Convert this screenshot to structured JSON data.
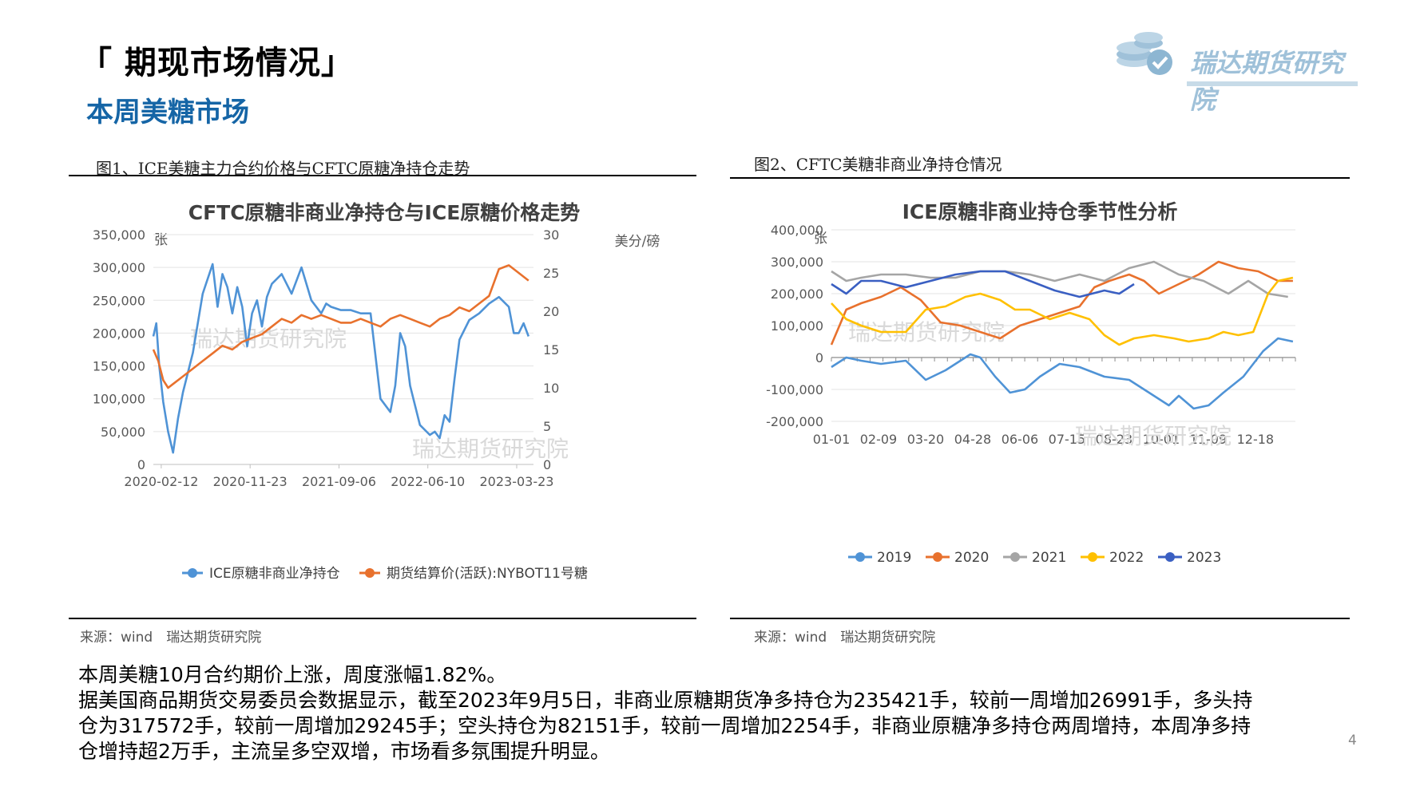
{
  "header": {
    "title": "「 期现市场情况」",
    "subtitle": "本周美糖市场",
    "logo_text": "瑞达期货研究院"
  },
  "figures": [
    {
      "caption": "图1、ICE美糖主力合约价格与CFTC原糖净持仓走势",
      "source": "来源：wind　瑞达期货研究院",
      "watermarks": [
        "瑞达期货研究院",
        "瑞达期货研究院"
      ]
    },
    {
      "caption": "图2、CFTC美糖非商业净持仓情况",
      "source": "来源：wind　瑞达期货研究院",
      "watermarks": [
        "瑞达期货研究院",
        "瑞达期货研究院"
      ]
    }
  ],
  "chart_data": [
    {
      "type": "line",
      "title": "CFTC原糖非商业净持仓与ICE原糖价格走势",
      "ylabel_left": "张",
      "ylabel_right": "美分/磅",
      "ylim_left": [
        0,
        350000
      ],
      "ylim_right": [
        0,
        30
      ],
      "yticks_left": [
        "350,000",
        "300,000",
        "250,000",
        "200,000",
        "150,000",
        "100,000",
        "50,000",
        "0"
      ],
      "yticks_right": [
        "30",
        "25",
        "20",
        "15",
        "10",
        "5",
        "0"
      ],
      "xticks": [
        "2020-02-12",
        "2020-11-23",
        "2021-09-06",
        "2022-06-10",
        "2023-03-23"
      ],
      "x_range": [
        0,
        3.85
      ],
      "legend": "bottom",
      "series": [
        {
          "name": "ICE原糖非商业净持仓",
          "axis": "left",
          "color": "#4f93d6",
          "x": [
            0.0,
            0.03,
            0.06,
            0.1,
            0.15,
            0.2,
            0.25,
            0.3,
            0.35,
            0.4,
            0.5,
            0.6,
            0.65,
            0.7,
            0.75,
            0.8,
            0.85,
            0.9,
            0.95,
            1.0,
            1.05,
            1.1,
            1.15,
            1.2,
            1.3,
            1.4,
            1.5,
            1.6,
            1.7,
            1.75,
            1.8,
            1.9,
            2.0,
            2.1,
            2.2,
            2.3,
            2.4,
            2.45,
            2.5,
            2.55,
            2.6,
            2.7,
            2.8,
            2.85,
            2.9,
            2.95,
            3.0,
            3.05,
            3.1,
            3.2,
            3.3,
            3.4,
            3.5,
            3.6,
            3.65,
            3.7,
            3.75,
            3.8
          ],
          "y": [
            195000,
            215000,
            150000,
            95000,
            50000,
            18000,
            70000,
            110000,
            140000,
            170000,
            260000,
            305000,
            240000,
            290000,
            270000,
            230000,
            270000,
            240000,
            180000,
            230000,
            250000,
            210000,
            255000,
            275000,
            290000,
            260000,
            300000,
            250000,
            230000,
            245000,
            240000,
            235000,
            235000,
            230000,
            230000,
            100000,
            80000,
            120000,
            200000,
            180000,
            120000,
            60000,
            45000,
            50000,
            40000,
            75000,
            65000,
            130000,
            190000,
            220000,
            230000,
            245000,
            255000,
            240000,
            200000,
            200000,
            215000,
            195000
          ]
        },
        {
          "name": "期货结算价(活跃):NYBOT11号糖",
          "axis": "right",
          "color": "#e8712d",
          "x": [
            0.0,
            0.05,
            0.1,
            0.15,
            0.2,
            0.3,
            0.4,
            0.5,
            0.6,
            0.7,
            0.8,
            0.9,
            1.0,
            1.1,
            1.2,
            1.3,
            1.4,
            1.5,
            1.6,
            1.7,
            1.8,
            1.9,
            2.0,
            2.1,
            2.2,
            2.3,
            2.4,
            2.5,
            2.6,
            2.7,
            2.8,
            2.9,
            3.0,
            3.1,
            3.2,
            3.3,
            3.4,
            3.5,
            3.6,
            3.7,
            3.8
          ],
          "y": [
            15.0,
            13.5,
            11.0,
            10.0,
            10.5,
            11.5,
            12.5,
            13.5,
            14.5,
            15.5,
            15.0,
            16.0,
            16.5,
            17.0,
            18.0,
            19.0,
            18.5,
            19.5,
            19.0,
            19.5,
            19.0,
            18.5,
            18.5,
            19.0,
            18.5,
            18.0,
            19.0,
            19.5,
            19.0,
            18.5,
            18.0,
            19.0,
            19.5,
            20.5,
            20.0,
            21.0,
            22.0,
            25.5,
            26.0,
            25.0,
            24.0
          ]
        }
      ]
    },
    {
      "type": "line",
      "title": "ICE原糖非商业持仓季节性分析",
      "ylabel": "张",
      "ylim": [
        -200000,
        400000
      ],
      "yticks": [
        "400,000",
        "300,000",
        "200,000",
        "100,000",
        "0",
        "-100,000",
        "-200,000"
      ],
      "xticks": [
        "01-01",
        "02-09",
        "03-20",
        "04-28",
        "06-06",
        "07-15",
        "08-23",
        "10-01",
        "11-09",
        "12-18"
      ],
      "x_range": [
        0,
        9.35
      ],
      "legend": "bottom",
      "series": [
        {
          "name": "2019",
          "color": "#4f93d6",
          "x": [
            0,
            0.3,
            0.6,
            1.0,
            1.5,
            1.9,
            2.3,
            2.8,
            3.0,
            3.3,
            3.6,
            3.9,
            4.2,
            4.6,
            5.0,
            5.5,
            6.0,
            6.4,
            6.8,
            7.0,
            7.3,
            7.6,
            7.9,
            8.3,
            8.7,
            9.0,
            9.3
          ],
          "y": [
            -30000,
            0,
            -10000,
            -20000,
            -10000,
            -70000,
            -40000,
            10000,
            0,
            -60000,
            -110000,
            -100000,
            -60000,
            -20000,
            -30000,
            -60000,
            -70000,
            -110000,
            -150000,
            -120000,
            -160000,
            -150000,
            -110000,
            -60000,
            20000,
            60000,
            50000
          ]
        },
        {
          "name": "2020",
          "color": "#e8712d",
          "x": [
            0,
            0.3,
            0.6,
            1.0,
            1.4,
            1.8,
            2.2,
            2.6,
            3.0,
            3.4,
            3.8,
            4.2,
            4.6,
            5.0,
            5.3,
            5.6,
            6.0,
            6.3,
            6.6,
            7.0,
            7.4,
            7.8,
            8.2,
            8.6,
            9.0,
            9.3
          ],
          "y": [
            40000,
            150000,
            170000,
            190000,
            220000,
            180000,
            110000,
            100000,
            80000,
            60000,
            100000,
            120000,
            140000,
            160000,
            220000,
            240000,
            260000,
            240000,
            200000,
            230000,
            260000,
            300000,
            280000,
            270000,
            240000,
            240000
          ]
        },
        {
          "name": "2021",
          "color": "#a5a5a5",
          "x": [
            0,
            0.3,
            0.6,
            1.0,
            1.5,
            2.0,
            2.5,
            3.0,
            3.5,
            4.0,
            4.5,
            5.0,
            5.5,
            6.0,
            6.5,
            7.0,
            7.5,
            8.0,
            8.4,
            8.8,
            9.2
          ],
          "y": [
            270000,
            240000,
            250000,
            260000,
            260000,
            250000,
            250000,
            270000,
            270000,
            260000,
            240000,
            260000,
            240000,
            280000,
            300000,
            260000,
            240000,
            200000,
            240000,
            200000,
            190000
          ]
        },
        {
          "name": "2022",
          "color": "#ffc000",
          "x": [
            0,
            0.3,
            0.6,
            1.0,
            1.5,
            1.9,
            2.3,
            2.7,
            3.0,
            3.4,
            3.7,
            4.0,
            4.4,
            4.8,
            5.2,
            5.5,
            5.8,
            6.1,
            6.5,
            6.9,
            7.2,
            7.6,
            7.9,
            8.2,
            8.5,
            8.8,
            9.0,
            9.3
          ],
          "y": [
            170000,
            120000,
            100000,
            80000,
            80000,
            150000,
            160000,
            190000,
            200000,
            180000,
            150000,
            150000,
            120000,
            140000,
            120000,
            70000,
            40000,
            60000,
            70000,
            60000,
            50000,
            60000,
            80000,
            70000,
            80000,
            200000,
            240000,
            250000
          ]
        },
        {
          "name": "2023",
          "color": "#3a5fc2",
          "x": [
            0,
            0.3,
            0.6,
            1.0,
            1.5,
            2.0,
            2.5,
            3.0,
            3.5,
            4.0,
            4.5,
            5.0,
            5.5,
            5.8,
            6.1
          ],
          "y": [
            230000,
            200000,
            240000,
            240000,
            220000,
            240000,
            260000,
            270000,
            270000,
            240000,
            210000,
            190000,
            210000,
            200000,
            230000
          ]
        }
      ]
    }
  ],
  "body": {
    "line1": "本周美糖10月合约期价上涨，周度涨幅1.82%。",
    "line2": "据美国商品期货交易委员会数据显示，截至2023年9月5日，非商业原糖期货净多持仓为235421手，较前一周增加26991手，多头持仓为317572手，较前一周增加29245手；空头持仓为82151手，较前一周增加2254手，非商业原糖净多持仓两周增持，本周净多持仓增持超2万手，主流呈多空双增，市场看多氛围提升明显。"
  },
  "page_number": "4"
}
